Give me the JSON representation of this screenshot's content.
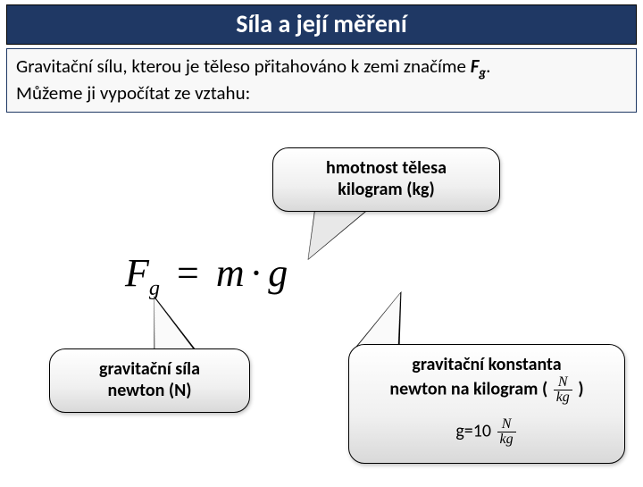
{
  "colors": {
    "title_bg": "#1f3864",
    "title_text": "#ffffff",
    "page_bg": "#ffffff",
    "intro_border": "#1f3864",
    "callout_border": "#000000",
    "callout_grad_top": "#ffffff",
    "callout_grad_bottom": "#d9d9d9",
    "text": "#000000"
  },
  "title": "Síla a její měření",
  "intro": {
    "line1_pre": "Gravitační sílu, kterou je těleso přitahováno k zemi značíme ",
    "symbol": "F",
    "symbol_sub": "g",
    "line1_post": ".",
    "line2": "Můžeme ji vypočítat ze vztahu:"
  },
  "formula": {
    "lhs": "F",
    "lhs_sub": "g",
    "eq": "=",
    "m": "m",
    "dot": "·",
    "g": "g"
  },
  "callouts": {
    "mass": {
      "line1": "hmotnost tělesa",
      "line2": "kilogram (kg)"
    },
    "force": {
      "line1": "gravitační síla",
      "line2": "newton (N)"
    },
    "konst": {
      "line1": "gravitační konstanta",
      "line2_pre": "newton na kilogram ( ",
      "unit_num": "N",
      "unit_den": "kg",
      "line2_post": " )",
      "gval_pre": "g=10 ",
      "gval_num": "N",
      "gval_den": "kg"
    }
  },
  "fonts": {
    "title_size_pt": 21,
    "intro_size_pt": 16,
    "callout_size_pt": 15,
    "formula_size_pt": 33,
    "formula_family": "Times New Roman"
  }
}
